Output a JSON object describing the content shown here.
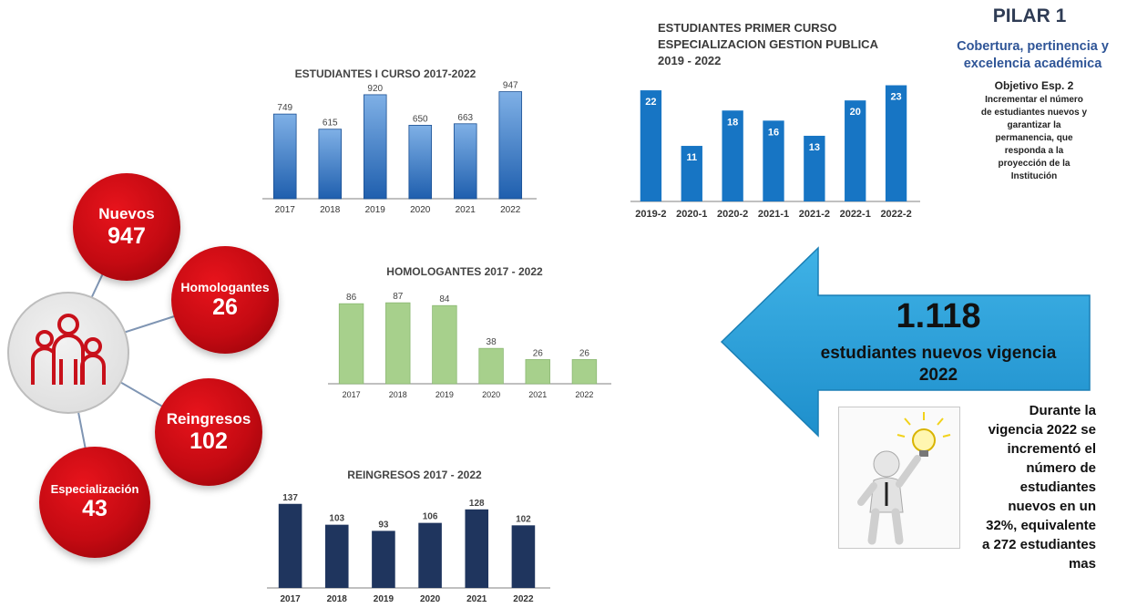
{
  "bubbles": {
    "nuevos": {
      "label": "Nuevos",
      "value": "947"
    },
    "homologantes": {
      "label": "Homologantes",
      "value": "26"
    },
    "reingresos": {
      "label": "Reingresos",
      "value": "102"
    },
    "especializacion": {
      "label": "Especialización",
      "value": "43"
    }
  },
  "pilar": {
    "title": "PILAR 1",
    "subtitle_line1": "Cobertura, pertinencia y",
    "subtitle_line2": "excelencia académica",
    "objective_title": "Objetivo Esp. 2",
    "objective_lines": [
      "Incrementar el número",
      "de estudiantes nuevos y",
      "garantizar la",
      "permanencia, que",
      "responda a la",
      "proyección de la",
      "Institución"
    ]
  },
  "arrow": {
    "number": "1.118",
    "text_line1": "estudiantes nuevos vigencia",
    "text_line2": "2022"
  },
  "note": {
    "lines": [
      "Durante la",
      "vigencia 2022 se",
      "incrementó el",
      "número de",
      "estudiantes",
      "nuevos en un",
      "32%, equivalente",
      "a 272 estudiantes",
      "mas"
    ]
  },
  "colors": {
    "primer_curso": "#1f6fbf",
    "especializacion": "#1775c4",
    "homologantes": "#a7d08c",
    "reingresos": "#1f355e",
    "bubble": "#c40a12",
    "arrow": "#2a9fd6"
  },
  "chart_data": [
    {
      "id": "primer-curso",
      "type": "bar",
      "title": "ESTUDIANTES I CURSO 2017-2022",
      "categories": [
        "2017",
        "2018",
        "2019",
        "2020",
        "2021",
        "2022"
      ],
      "values": [
        749,
        615,
        920,
        650,
        663,
        947
      ],
      "ylim": [
        0,
        1000
      ],
      "grid": false
    },
    {
      "id": "especializacion",
      "type": "bar",
      "title_lines": [
        "ESTUDIANTES PRIMER CURSO",
        "ESPECIALIZACION GESTION PUBLICA",
        "2019 - 2022"
      ],
      "categories": [
        "2019-2",
        "2020-1",
        "2020-2",
        "2021-1",
        "2021-2",
        "2022-1",
        "2022-2"
      ],
      "values": [
        22,
        11,
        18,
        16,
        13,
        20,
        23
      ],
      "ylim": [
        0,
        24
      ],
      "grid": false
    },
    {
      "id": "homologantes",
      "type": "bar",
      "title": "HOMOLOGANTES 2017 - 2022",
      "categories": [
        "2017",
        "2018",
        "2019",
        "2020",
        "2021",
        "2022"
      ],
      "values": [
        86,
        87,
        84,
        38,
        26,
        26
      ],
      "ylim": [
        0,
        95
      ],
      "grid": false
    },
    {
      "id": "reingresos",
      "type": "bar",
      "title": "REINGRESOS 2017 - 2022",
      "categories": [
        "2017",
        "2018",
        "2019",
        "2020",
        "2021",
        "2022"
      ],
      "values": [
        137,
        103,
        93,
        106,
        128,
        102
      ],
      "ylim": [
        0,
        150
      ],
      "grid": false
    }
  ]
}
